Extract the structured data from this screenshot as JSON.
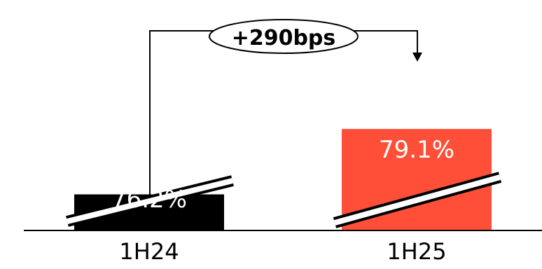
{
  "chart_data": {
    "type": "bar",
    "categories": [
      "1H24",
      "1H25"
    ],
    "values": [
      76.2,
      79.1
    ],
    "value_labels": [
      "76.2%",
      "79.1%"
    ],
    "colors": [
      "#000000",
      "#ff4f38"
    ],
    "axis_broken": true,
    "ylim": [
      74.6,
      81.3
    ],
    "annotation": {
      "text": "+290bps",
      "from": "1H24",
      "to": "1H25"
    },
    "title": "",
    "xlabel": "",
    "ylabel": "",
    "grid": false,
    "legend": "none"
  }
}
